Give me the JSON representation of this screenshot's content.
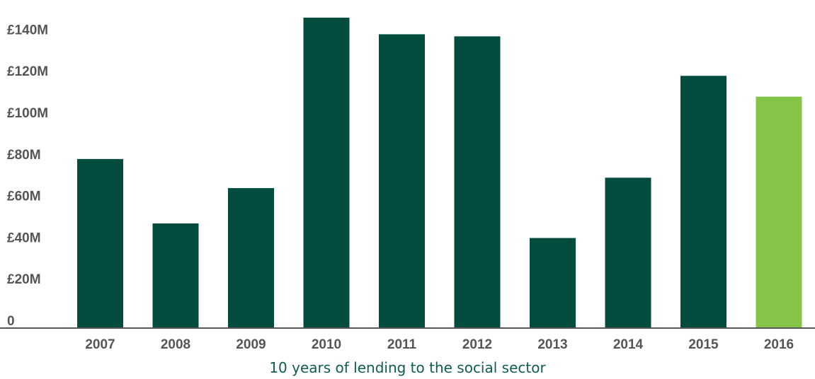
{
  "chart_data": {
    "type": "bar",
    "categories": [
      "2007",
      "2008",
      "2009",
      "2010",
      "2011",
      "2012",
      "2013",
      "2014",
      "2015",
      "2016"
    ],
    "values": [
      81,
      50,
      67,
      149,
      141,
      140,
      43,
      72,
      121,
      111
    ],
    "highlight_index": 9,
    "title": "10 years of lending to the social sector",
    "xlabel": "",
    "ylabel": "",
    "ylim": [
      0,
      140
    ],
    "yticks": [
      0,
      20,
      40,
      60,
      80,
      100,
      120,
      140
    ],
    "ytick_labels": [
      "0",
      "£20M",
      "£40M",
      "£60M",
      "£80M",
      "£100M",
      "£120M",
      "£140M"
    ],
    "grid": false,
    "legend": "none",
    "colors": {
      "bar": "#004d40",
      "highlight": "#84c446",
      "axis": "#555555",
      "caption": "#0e5e4b"
    }
  }
}
